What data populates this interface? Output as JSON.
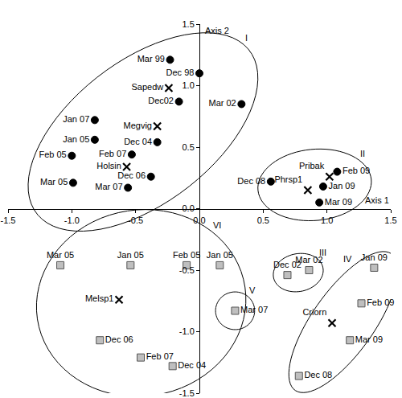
{
  "chart_data": {
    "type": "scatter",
    "x_label": "Axis 1",
    "y_label": "Axis 2",
    "xlim": [
      -1.5,
      1.5
    ],
    "ylim": [
      -1.5,
      1.5
    ],
    "xticks": [
      -1.5,
      {
        "value": -1,
        "label": "-1.0"
      },
      -0.5,
      {
        "value": 0,
        "label": "0.0"
      },
      0.5,
      {
        "value": 1,
        "label": "1.0"
      },
      1.5
    ],
    "yticks": [
      -1.5,
      {
        "value": -1,
        "label": "-1.0"
      },
      -0.5,
      {
        "value": 0,
        "label": "0.0"
      },
      0.5,
      {
        "value": 1,
        "label": "1.0"
      },
      1.5
    ],
    "grid": false,
    "series": [
      {
        "marker": "circle",
        "color": "#000000",
        "x": [
          -0.23,
          0.0,
          -0.16,
          0.33,
          -0.82,
          -0.82,
          -0.33,
          -0.53,
          -1.0,
          -0.38,
          -0.99,
          -0.56,
          0.56,
          1.08,
          0.97,
          0.94
        ],
        "y": [
          1.21,
          1.1,
          0.87,
          0.85,
          0.72,
          0.56,
          0.54,
          0.44,
          0.43,
          0.26,
          0.21,
          0.17,
          0.22,
          0.3,
          0.18,
          0.05
        ],
        "labels": [
          "Mar 99",
          "Dec 98",
          "Dec02",
          "Mar 02",
          "Jan 07",
          "Jan 05",
          "Dec 04",
          "Feb 07",
          "Feb 05",
          "Dec 06",
          "Mar 05",
          "Mar 07",
          "Dec 08",
          "Feb 09",
          "Jan 09",
          "Mar 09"
        ],
        "groups": [
          "I",
          "I",
          "I",
          "I",
          "I",
          "I",
          "I",
          "I",
          "I",
          "I",
          "I",
          "I",
          "II",
          "II",
          "II",
          "II"
        ]
      },
      {
        "marker": "x",
        "color": "#000000",
        "x": [
          -0.24,
          -0.33,
          -0.57,
          1.02,
          0.85,
          -0.63,
          1.04
        ],
        "y": [
          0.98,
          0.67,
          0.34,
          0.26,
          0.15,
          -0.74,
          -0.93
        ],
        "labels": [
          "Sapedw",
          "Megvig",
          "Holsin",
          "Pribak",
          "Phrsp1",
          "Melsp1",
          "Criorn"
        ],
        "groups": [
          "I",
          "I",
          "I",
          "II",
          "II",
          "VI",
          "IV"
        ]
      },
      {
        "marker": "square",
        "color": "#bfbfbf",
        "x": [
          -1.09,
          -0.54,
          -0.1,
          0.16,
          -0.78,
          -0.46,
          -0.21,
          0.69,
          0.86,
          0.28,
          1.37,
          1.27,
          1.18,
          0.78
        ],
        "y": [
          -0.46,
          -0.46,
          -0.46,
          -0.46,
          -1.07,
          -1.21,
          -1.28,
          -0.54,
          -0.5,
          -0.83,
          -0.48,
          -0.77,
          -1.07,
          -1.36
        ],
        "labels": [
          "Mar 05",
          "Jan 05",
          "Feb 05",
          "Jan 05",
          "Dec 06",
          "Feb 07",
          "Dec 04",
          "Dec 02",
          "Mar 02",
          "Mar 07",
          "Jan 09",
          "Feb 09",
          "Mar 09",
          "Dec 08"
        ],
        "groups": [
          "VI",
          "VI",
          "VI",
          "VI",
          "VI",
          "VI",
          "VI",
          "III",
          "III",
          "V",
          "IV",
          "IV",
          "IV",
          "IV"
        ]
      }
    ]
  }
}
